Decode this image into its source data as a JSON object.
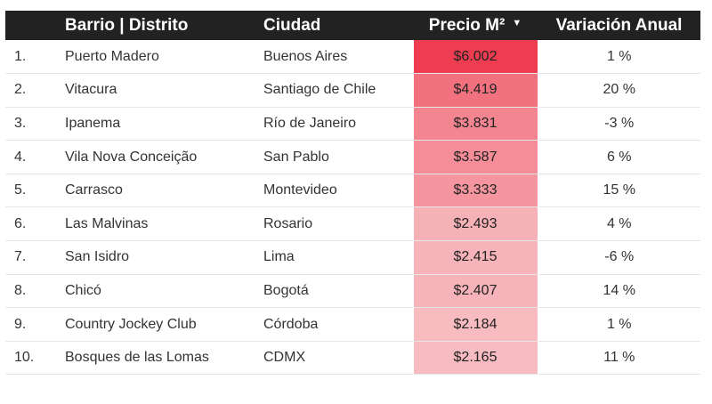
{
  "chart_data": {
    "type": "table",
    "columns": [
      "",
      "Barrio | Distrito",
      "Ciudad",
      "Precio M²",
      "Variación Anual"
    ],
    "sort_indicator": "▼",
    "heat_colors": {
      "max": "#ee3d51",
      "min": "#f7bcc1"
    },
    "rows": [
      {
        "rank": "1.",
        "barrio": "Puerto Madero",
        "ciudad": "Buenos Aires",
        "precio": "$6.002",
        "precio_value": 6002,
        "variacion": "1 %"
      },
      {
        "rank": "2.",
        "barrio": "Vitacura",
        "ciudad": "Santiago de Chile",
        "precio": "$4.419",
        "precio_value": 4419,
        "variacion": "20 %"
      },
      {
        "rank": "3.",
        "barrio": "Ipanema",
        "ciudad": "Río de Janeiro",
        "precio": "$3.831",
        "precio_value": 3831,
        "variacion": "-3 %"
      },
      {
        "rank": "4.",
        "barrio": "Vila Nova Conceição",
        "ciudad": "San Pablo",
        "precio": "$3.587",
        "precio_value": 3587,
        "variacion": "6 %"
      },
      {
        "rank": "5.",
        "barrio": "Carrasco",
        "ciudad": "Montevideo",
        "precio": "$3.333",
        "precio_value": 3333,
        "variacion": "15 %"
      },
      {
        "rank": "6.",
        "barrio": "Las Malvinas",
        "ciudad": "Rosario",
        "precio": "$2.493",
        "precio_value": 2493,
        "variacion": "4 %"
      },
      {
        "rank": "7.",
        "barrio": "San Isidro",
        "ciudad": "Lima",
        "precio": "$2.415",
        "precio_value": 2415,
        "variacion": "-6 %"
      },
      {
        "rank": "8.",
        "barrio": "Chicó",
        "ciudad": "Bogotá",
        "precio": "$2.407",
        "precio_value": 2407,
        "variacion": "14 %"
      },
      {
        "rank": "9.",
        "barrio": "Country Jockey Club",
        "ciudad": "Córdoba",
        "precio": "$2.184",
        "precio_value": 2184,
        "variacion": "1 %"
      },
      {
        "rank": "10.",
        "barrio": "Bosques de las Lomas",
        "ciudad": "CDMX",
        "precio": "$2.165",
        "precio_value": 2165,
        "variacion": "11 %"
      }
    ]
  }
}
